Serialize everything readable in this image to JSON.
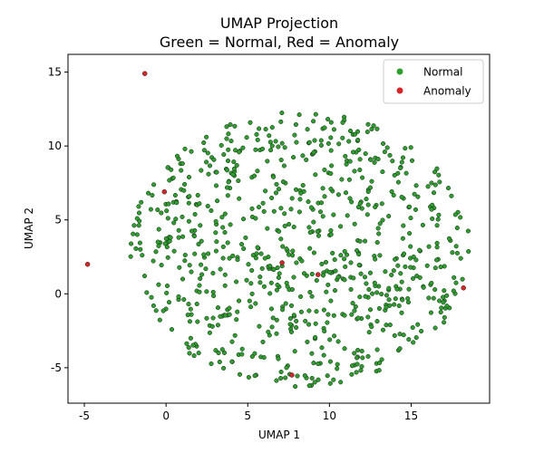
{
  "colors": {
    "normal": "#2ca02c",
    "anomaly": "#d62728",
    "edge": "#1a1a1a"
  },
  "chart_data": {
    "type": "scatter",
    "title_lines": [
      "UMAP Projection",
      "Green = Normal, Red = Anomaly"
    ],
    "xlabel": "UMAP 1",
    "ylabel": "UMAP 2",
    "xlim": [
      -6.0,
      19.8
    ],
    "ylim": [
      -7.4,
      16.2
    ],
    "xticks": [
      -5,
      0,
      5,
      10,
      15
    ],
    "yticks": [
      -5,
      0,
      5,
      10,
      15
    ],
    "grid": false,
    "legend_position": "top-right",
    "legend": [
      {
        "label": "Normal",
        "color": "#2ca02c"
      },
      {
        "label": "Anomaly",
        "color": "#d62728"
      }
    ],
    "normal_cloud": {
      "description": "approximately 800 points filling an ellipse",
      "center": [
        8.2,
        3.0
      ],
      "x_radius": 10.4,
      "y_radius": 9.3,
      "approx_count": 800
    },
    "series": [
      {
        "name": "Anomaly",
        "points": [
          {
            "x": -1.3,
            "y": 14.9
          },
          {
            "x": -4.8,
            "y": 2.0
          },
          {
            "x": -0.1,
            "y": 6.9
          },
          {
            "x": 7.1,
            "y": 2.1
          },
          {
            "x": 9.3,
            "y": 1.3
          },
          {
            "x": 7.7,
            "y": -5.5
          },
          {
            "x": 18.2,
            "y": 0.4
          }
        ]
      }
    ]
  }
}
